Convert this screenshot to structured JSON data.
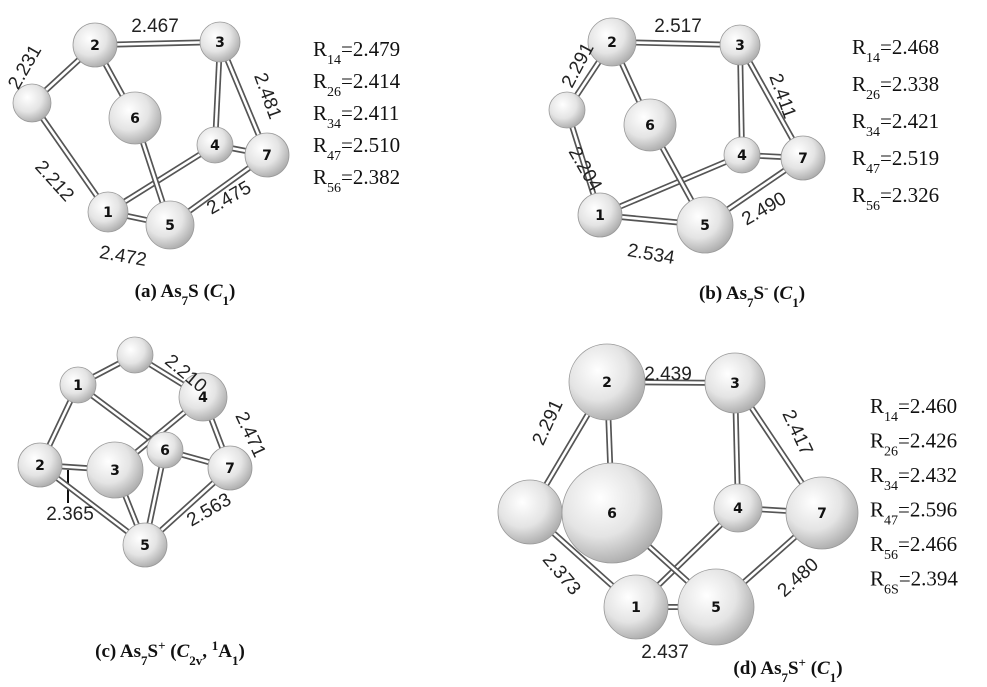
{
  "panels": [
    {
      "atoms": [
        "2",
        "3",
        "6",
        "4",
        "7",
        "1",
        "5"
      ],
      "bond_labels": [
        "2.467",
        "2.231",
        "2.481",
        "2.212",
        "2.475",
        "2.472"
      ],
      "r_labels": [
        {
          "symbol": "R",
          "sub": "14",
          "text": "=2.479"
        },
        {
          "symbol": "R",
          "sub": "26",
          "text": "=2.414"
        },
        {
          "symbol": "R",
          "sub": "34",
          "text": "=2.411"
        },
        {
          "symbol": "R",
          "sub": "47",
          "text": "=2.510"
        },
        {
          "symbol": "R",
          "sub": "56",
          "text": "=2.382"
        }
      ],
      "caption": [
        "(a) As",
        "7",
        "S (",
        "C",
        "1",
        ")"
      ]
    },
    {
      "atoms": [
        "2",
        "3",
        "6",
        "4",
        "7",
        "1",
        "5"
      ],
      "bond_labels": [
        "2.517",
        "2.291",
        "2.411",
        "2.204",
        "2.490",
        "2.534"
      ],
      "r_labels": [
        {
          "symbol": "R",
          "sub": "14",
          "text": "=2.468"
        },
        {
          "symbol": "R",
          "sub": "26",
          "text": "=2.338"
        },
        {
          "symbol": "R",
          "sub": "34",
          "text": "=2.421"
        },
        {
          "symbol": "R",
          "sub": "47",
          "text": "=2.519"
        },
        {
          "symbol": "R",
          "sub": "56",
          "text": "=2.326"
        }
      ],
      "caption": [
        "(b) As",
        "7",
        "S",
        "-",
        " (",
        "C",
        "1",
        ")"
      ]
    },
    {
      "atoms": [
        "1",
        "4",
        "2",
        "3",
        "6",
        "7",
        "5"
      ],
      "bond_labels": [
        "2.210",
        "2.471",
        "2.365",
        "2.563"
      ],
      "r_labels": [],
      "caption": [
        "(c) As",
        "7",
        "S",
        "+",
        " (",
        "C",
        "2v",
        ", ",
        "1",
        "A",
        "1",
        ")"
      ]
    },
    {
      "atoms": [
        "2",
        "3",
        "6",
        "4",
        "7",
        "1",
        "5"
      ],
      "bond_labels": [
        "2.439",
        "2.291",
        "2.417",
        "2.373",
        "2.480",
        "2.437"
      ],
      "r_labels": [
        {
          "symbol": "R",
          "sub": "14",
          "text": "=2.460"
        },
        {
          "symbol": "R",
          "sub": "26",
          "text": "=2.426"
        },
        {
          "symbol": "R",
          "sub": "34",
          "text": "=2.432"
        },
        {
          "symbol": "R",
          "sub": "47",
          "text": "=2.596"
        },
        {
          "symbol": "R",
          "sub": "56",
          "text": "=2.466"
        },
        {
          "symbol": "R",
          "sub": "6S",
          "text": "=2.394"
        }
      ],
      "caption": [
        "(d) As",
        "7",
        "S",
        "+",
        " (",
        "C",
        "1",
        ")"
      ]
    }
  ]
}
